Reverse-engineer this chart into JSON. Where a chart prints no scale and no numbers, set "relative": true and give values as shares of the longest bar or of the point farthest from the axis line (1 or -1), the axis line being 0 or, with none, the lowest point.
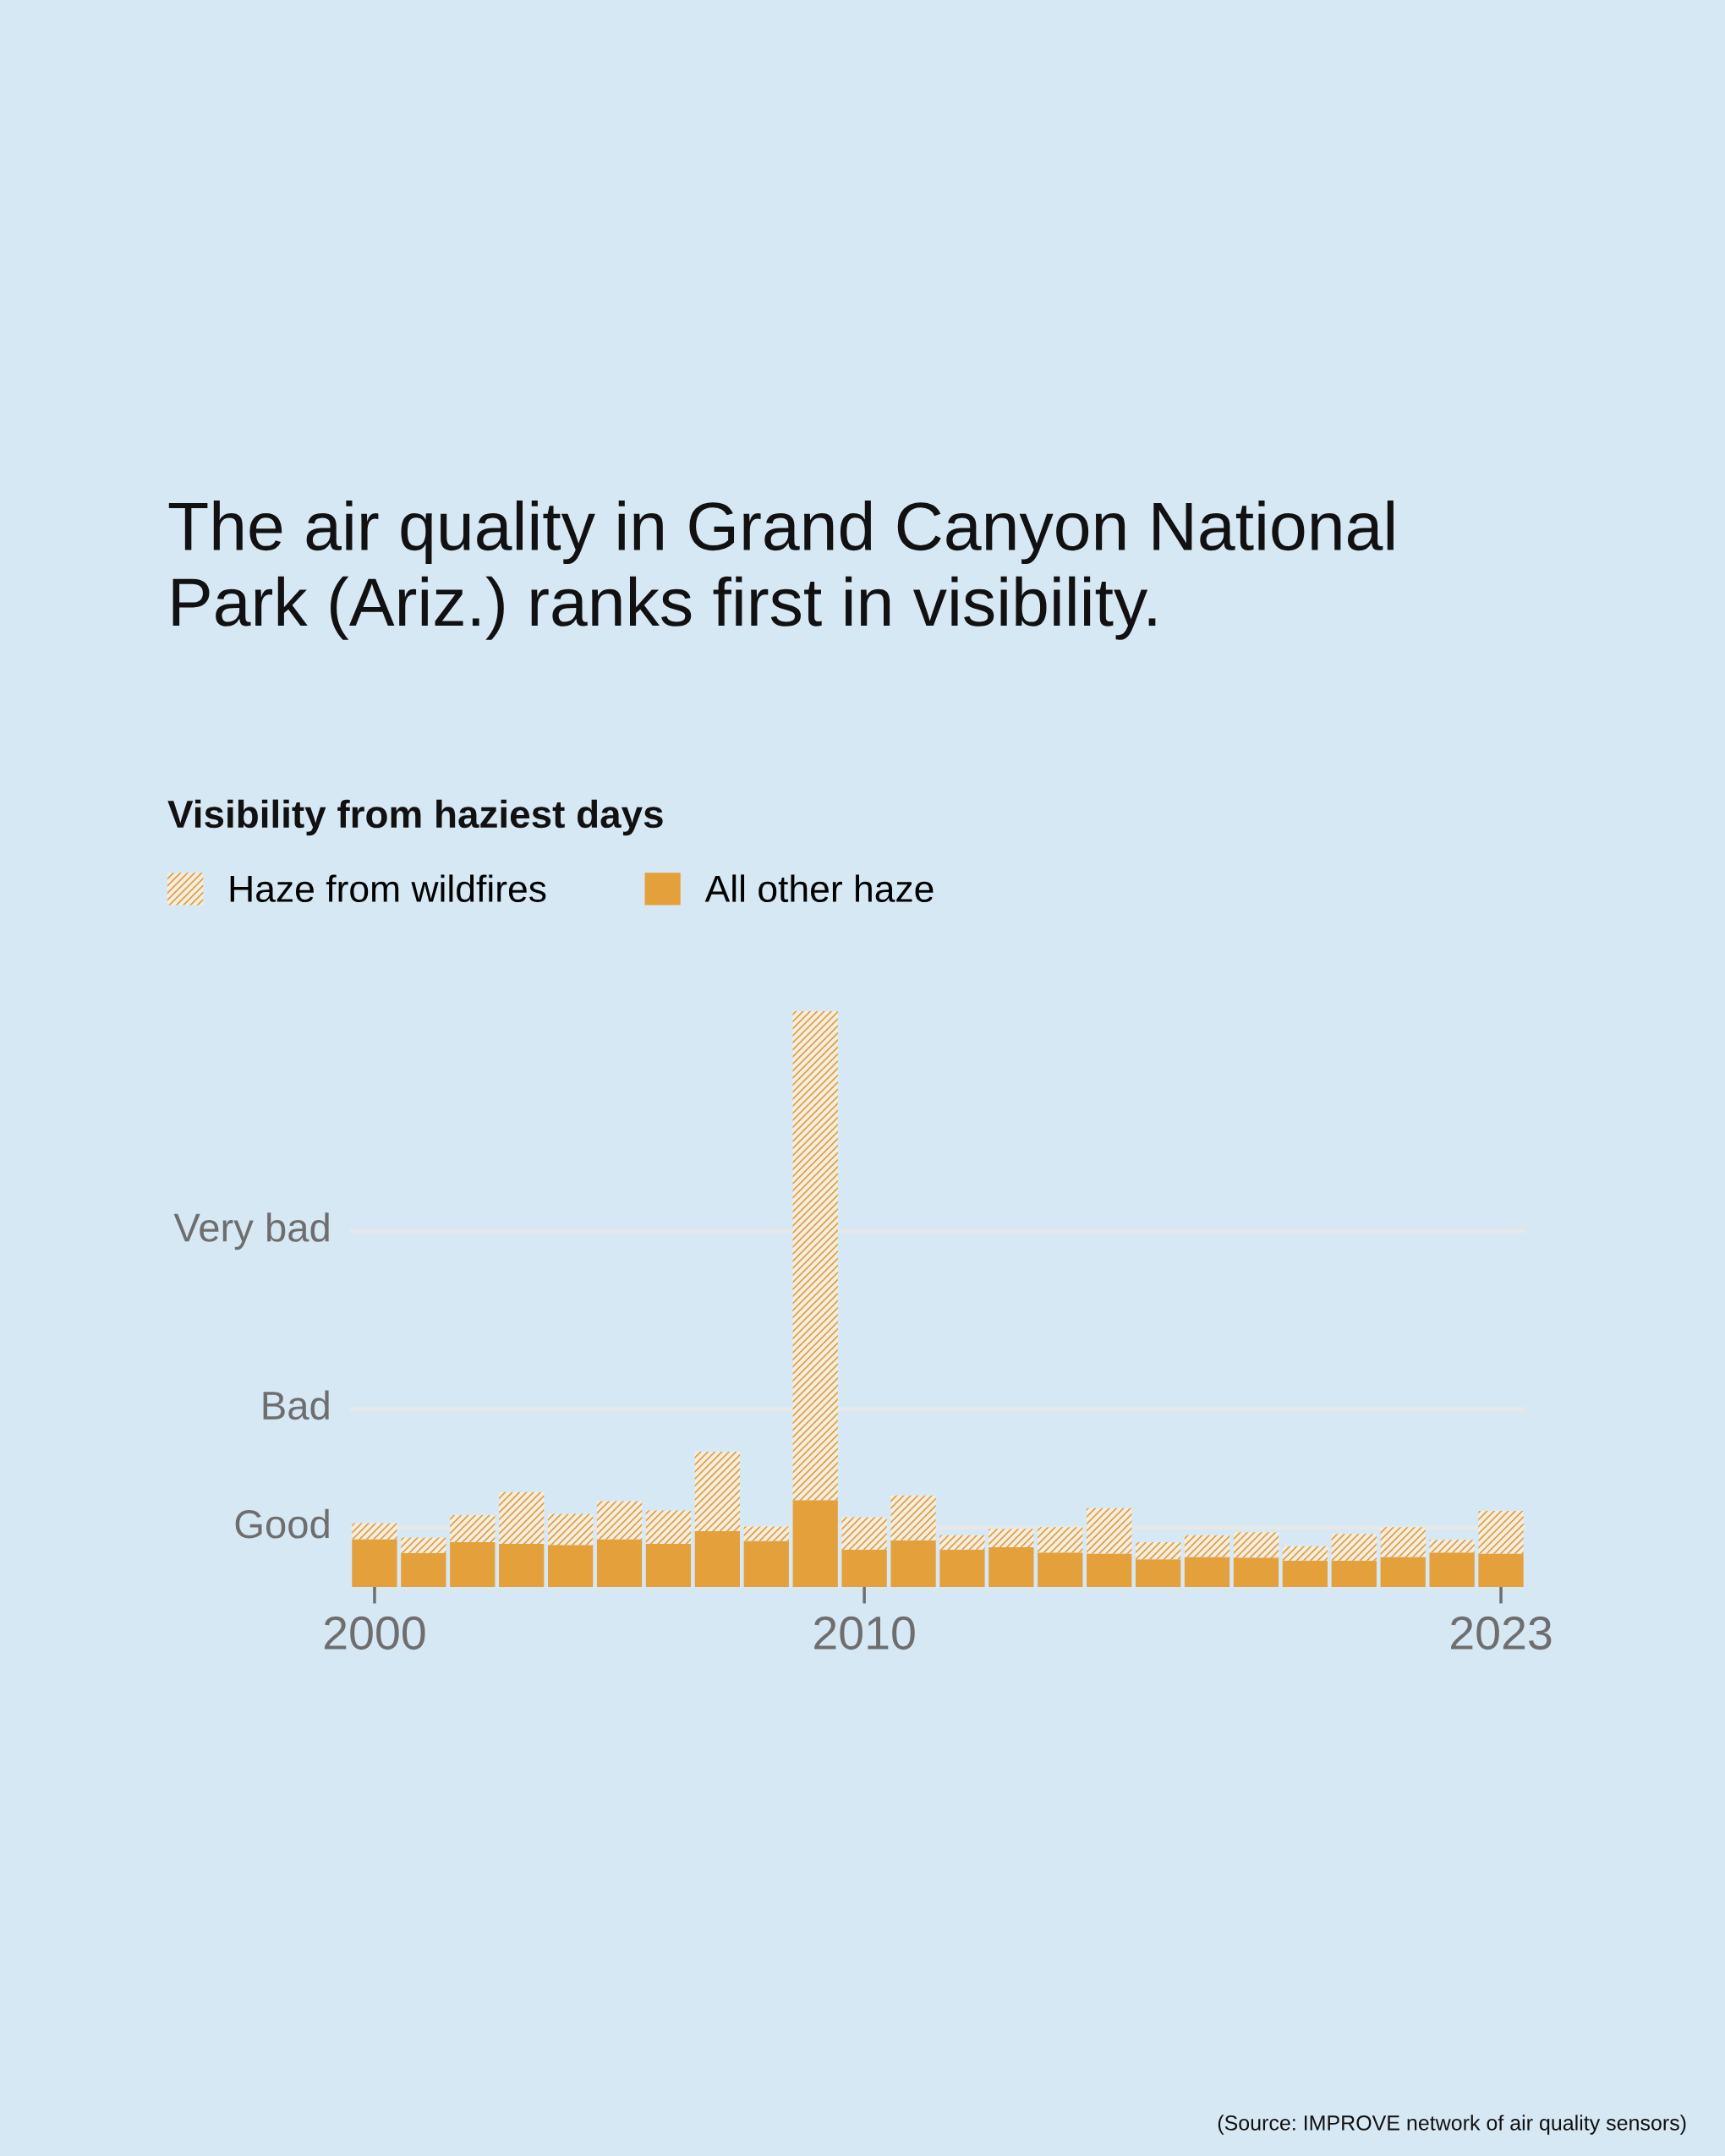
{
  "chart_data": {
    "type": "bar",
    "title": "The air quality in Grand Canyon National\nPark (Ariz.) ranks first in visibility.",
    "subtitle": "Visibility from haziest days",
    "categories": [
      "2000",
      null,
      null,
      null,
      null,
      null,
      null,
      null,
      null,
      null,
      "2010",
      null,
      null,
      null,
      null,
      null,
      null,
      null,
      null,
      null,
      null,
      null,
      null,
      "2023"
    ],
    "stacked": true,
    "relative": true,
    "series": [
      {
        "name": "All other haze",
        "color": "#e4a03a",
        "values": [
          0.083,
          0.059,
          0.078,
          0.075,
          0.073,
          0.083,
          0.075,
          0.097,
          0.08,
          0.151,
          0.065,
          0.081,
          0.065,
          0.069,
          0.06,
          0.058,
          0.048,
          0.052,
          0.051,
          0.046,
          0.046,
          0.052,
          0.06,
          0.058
        ]
      },
      {
        "name": "Haze from wildfires",
        "color": "#e4a03a",
        "values": [
          0.028,
          0.027,
          0.047,
          0.09,
          0.054,
          0.066,
          0.058,
          0.138,
          0.025,
          0.849,
          0.056,
          0.078,
          0.025,
          0.032,
          0.044,
          0.079,
          0.03,
          0.038,
          0.044,
          0.025,
          0.046,
          0.052,
          0.022,
          0.074
        ]
      }
    ],
    "ref_lines": [
      {
        "axis": "y",
        "value": 0.103,
        "label": "Good",
        "color": "#e8e8e8"
      },
      {
        "axis": "y",
        "value": 0.309,
        "label": "Bad",
        "color": "#e8e8e8"
      },
      {
        "axis": "y",
        "value": 0.618,
        "label": "Very bad",
        "color": "#e8e8e8"
      }
    ],
    "legend": "top left",
    "annotations": [
      "(Source: IMPROVE network of air quality sensors)"
    ]
  }
}
